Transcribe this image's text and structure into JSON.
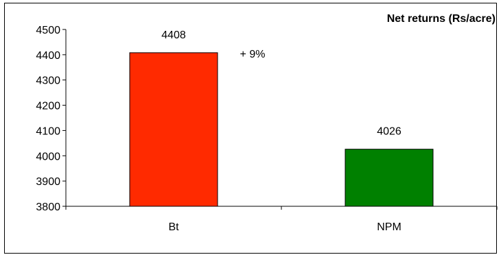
{
  "chart_data": {
    "type": "bar",
    "title": "Net returns (Rs/acre)",
    "categories": [
      "Bt",
      "NPM"
    ],
    "values": [
      4408,
      4026
    ],
    "value_labels": [
      "4408",
      "4026"
    ],
    "annotation": "+ 9%",
    "colors": [
      "#ff2a00",
      "#008000"
    ],
    "ylim": [
      3800,
      4500
    ],
    "yticks": [
      3800,
      3900,
      4000,
      4100,
      4200,
      4300,
      4400,
      4500
    ],
    "xlabel": "",
    "ylabel": "",
    "grid": false,
    "legend": "none"
  }
}
